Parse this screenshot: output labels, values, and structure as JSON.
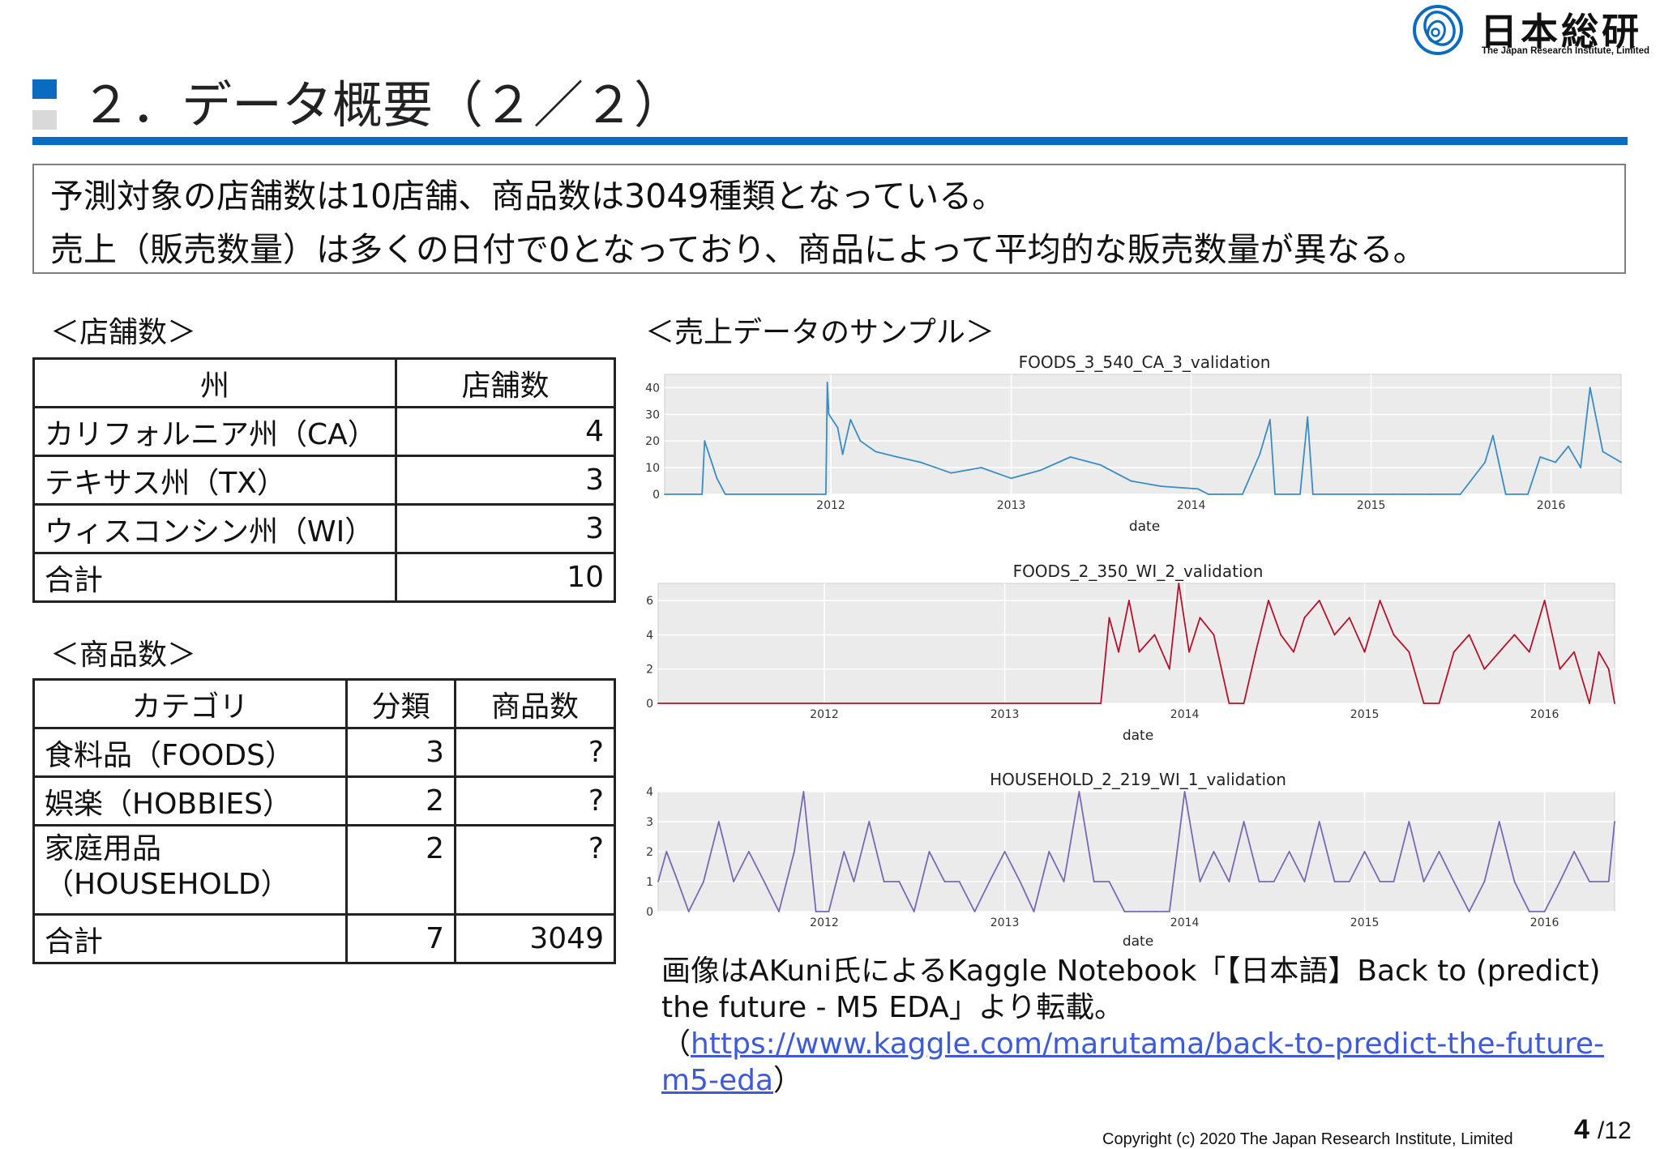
{
  "logo": {
    "name_ja": "日本総研",
    "name_en": "The Japan Research Institute, Limited",
    "brand_color": "#0a6bbf"
  },
  "title": "２．データ概要（２／２）",
  "summary": [
    "予測対象の店舗数は10店舗、商品数は3049種類となっている。",
    "売上（販売数量）は多くの日付で0となっており、商品によって平均的な販売数量が異なる。"
  ],
  "stores": {
    "heading": "＜店舗数＞",
    "columns": [
      "州",
      "店舗数"
    ],
    "rows": [
      [
        "カリフォルニア州（CA）",
        "4"
      ],
      [
        "テキサス州（TX）",
        "3"
      ],
      [
        "ウィスコンシン州（WI）",
        "3"
      ],
      [
        "合計",
        "10"
      ]
    ]
  },
  "products": {
    "heading": "＜商品数＞",
    "columns": [
      "カテゴリ",
      "分類",
      "商品数"
    ],
    "rows": [
      [
        "食料品（FOODS）",
        "3",
        "?"
      ],
      [
        "娯楽（HOBBIES）",
        "2",
        "?"
      ],
      [
        "家庭用品\n（HOUSEHOLD）",
        "2",
        "?"
      ],
      [
        "合計",
        "7",
        "3049"
      ]
    ]
  },
  "sample_heading": "＜売上データのサンプル＞",
  "chart_data": [
    {
      "type": "line",
      "title": "FOODS_3_540_CA_3_validation",
      "xlabel": "date",
      "ylabel": "",
      "color": "#3a8dc2",
      "x_ticks": [
        "2012",
        "2013",
        "2014",
        "2015",
        "2016"
      ],
      "y_ticks": [
        0,
        10,
        20,
        30,
        40
      ],
      "xlim": [
        "2011-01-29",
        "2016-05-22"
      ],
      "ylim": [
        0,
        45
      ],
      "grid": true,
      "x": [
        "2011-01-29",
        "2011-04-15",
        "2011-04-20",
        "2011-05-15",
        "2011-06-01",
        "2011-12-22",
        "2011-12-25",
        "2011-12-28",
        "2012-01-15",
        "2012-01-25",
        "2012-02-10",
        "2012-03-01",
        "2012-04-01",
        "2012-05-15",
        "2012-07-01",
        "2012-09-01",
        "2012-11-01",
        "2013-01-01",
        "2013-03-01",
        "2013-05-01",
        "2013-07-01",
        "2013-09-01",
        "2013-11-01",
        "2014-01-15",
        "2014-02-05",
        "2014-02-20",
        "2014-03-05",
        "2014-04-15",
        "2014-05-20",
        "2014-06-10",
        "2014-06-20",
        "2014-08-10",
        "2014-08-25",
        "2014-09-05",
        "2015-02-15",
        "2015-03-10",
        "2015-05-01",
        "2015-07-01",
        "2015-08-20",
        "2015-09-05",
        "2015-10-01",
        "2015-11-15",
        "2015-12-10",
        "2016-01-10",
        "2016-02-05",
        "2016-03-01",
        "2016-03-20",
        "2016-04-15",
        "2016-05-22"
      ],
      "y": [
        0,
        0,
        20,
        6,
        0,
        0,
        42,
        30,
        25,
        15,
        28,
        20,
        16,
        14,
        12,
        8,
        10,
        6,
        9,
        14,
        11,
        5,
        3,
        2,
        0,
        0,
        0,
        0,
        15,
        28,
        0,
        0,
        29,
        0,
        0,
        0,
        0,
        0,
        12,
        22,
        0,
        0,
        14,
        12,
        18,
        10,
        40,
        16,
        12
      ]
    },
    {
      "type": "line",
      "title": "FOODS_2_350_WI_2_validation",
      "xlabel": "date",
      "ylabel": "",
      "color": "#b5122e",
      "x_ticks": [
        "2012",
        "2013",
        "2014",
        "2015",
        "2016"
      ],
      "y_ticks": [
        0,
        2,
        4,
        6
      ],
      "xlim": [
        "2011-01-29",
        "2016-05-22"
      ],
      "ylim": [
        0,
        7
      ],
      "grid": true,
      "x": [
        "2011-01-29",
        "2013-07-15",
        "2013-08-01",
        "2013-08-20",
        "2013-09-10",
        "2013-10-01",
        "2013-11-01",
        "2013-12-01",
        "2013-12-20",
        "2014-01-10",
        "2014-02-01",
        "2014-03-01",
        "2014-04-01",
        "2014-05-01",
        "2014-05-25",
        "2014-06-20",
        "2014-07-15",
        "2014-08-10",
        "2014-09-01",
        "2014-10-01",
        "2014-11-01",
        "2014-12-01",
        "2015-01-01",
        "2015-02-01",
        "2015-03-01",
        "2015-04-01",
        "2015-05-01",
        "2015-06-01",
        "2015-07-01",
        "2015-08-01",
        "2015-09-01",
        "2015-10-01",
        "2015-11-01",
        "2015-12-01",
        "2016-01-01",
        "2016-02-01",
        "2016-03-01",
        "2016-04-01",
        "2016-04-20",
        "2016-05-10",
        "2016-05-22"
      ],
      "y": [
        0,
        0,
        5,
        3,
        6,
        3,
        4,
        2,
        7,
        3,
        5,
        4,
        0,
        0,
        3,
        6,
        4,
        3,
        5,
        6,
        4,
        5,
        3,
        6,
        4,
        3,
        0,
        0,
        3,
        4,
        2,
        3,
        4,
        3,
        6,
        2,
        3,
        0,
        3,
        2,
        0
      ]
    },
    {
      "type": "line",
      "title": "HOUSEHOLD_2_219_WI_1_validation",
      "xlabel": "date",
      "ylabel": "",
      "color": "#7b68b3",
      "x_ticks": [
        "2012",
        "2013",
        "2014",
        "2015",
        "2016"
      ],
      "y_ticks": [
        0,
        1,
        2,
        3,
        4
      ],
      "xlim": [
        "2011-01-29",
        "2016-05-22"
      ],
      "ylim": [
        0,
        4
      ],
      "grid": true,
      "x": [
        "2011-01-29",
        "2011-02-15",
        "2011-03-10",
        "2011-04-01",
        "2011-05-01",
        "2011-06-01",
        "2011-07-01",
        "2011-08-01",
        "2011-09-01",
        "2011-10-01",
        "2011-11-01",
        "2011-11-20",
        "2011-12-15",
        "2012-01-10",
        "2012-02-10",
        "2012-03-01",
        "2012-04-01",
        "2012-05-01",
        "2012-06-01",
        "2012-07-01",
        "2012-08-01",
        "2012-09-01",
        "2012-10-01",
        "2012-11-01",
        "2012-12-01",
        "2013-01-01",
        "2013-02-01",
        "2013-03-01",
        "2013-04-01",
        "2013-05-01",
        "2013-06-01",
        "2013-07-01",
        "2013-08-01",
        "2013-09-01",
        "2013-10-01",
        "2013-11-01",
        "2013-12-01",
        "2014-01-01",
        "2014-02-01",
        "2014-03-01",
        "2014-04-01",
        "2014-05-01",
        "2014-06-01",
        "2014-07-01",
        "2014-08-01",
        "2014-09-01",
        "2014-10-01",
        "2014-11-01",
        "2014-12-01",
        "2015-01-01",
        "2015-02-01",
        "2015-03-01",
        "2015-04-01",
        "2015-05-01",
        "2015-06-01",
        "2015-07-01",
        "2015-08-01",
        "2015-09-01",
        "2015-10-01",
        "2015-11-01",
        "2015-12-01",
        "2016-01-01",
        "2016-02-01",
        "2016-03-01",
        "2016-04-01",
        "2016-05-10",
        "2016-05-22"
      ],
      "y": [
        1,
        2,
        1,
        0,
        1,
        3,
        1,
        2,
        1,
        0,
        2,
        4,
        0,
        0,
        2,
        1,
        3,
        1,
        1,
        0,
        2,
        1,
        1,
        0,
        1,
        2,
        1,
        0,
        2,
        1,
        4,
        1,
        1,
        0,
        0,
        0,
        0,
        4,
        1,
        2,
        1,
        3,
        1,
        1,
        2,
        1,
        3,
        1,
        1,
        2,
        1,
        1,
        3,
        1,
        2,
        1,
        0,
        1,
        3,
        1,
        0,
        0,
        1,
        2,
        1,
        1,
        3
      ]
    }
  ],
  "caption": {
    "text": "画像はAKuni氏によるKaggle Notebook「【日本語】Back to (predict) the future - M5 EDA」より転載。",
    "open_paren": "（",
    "url": "https://www.kaggle.com/marutama/back-to-predict-the-future-m5-eda",
    "close_paren": "）"
  },
  "footer": {
    "copyright": "Copyright (c) 2020 The Japan Research Institute, Limited",
    "page": "4",
    "total": "/12"
  }
}
